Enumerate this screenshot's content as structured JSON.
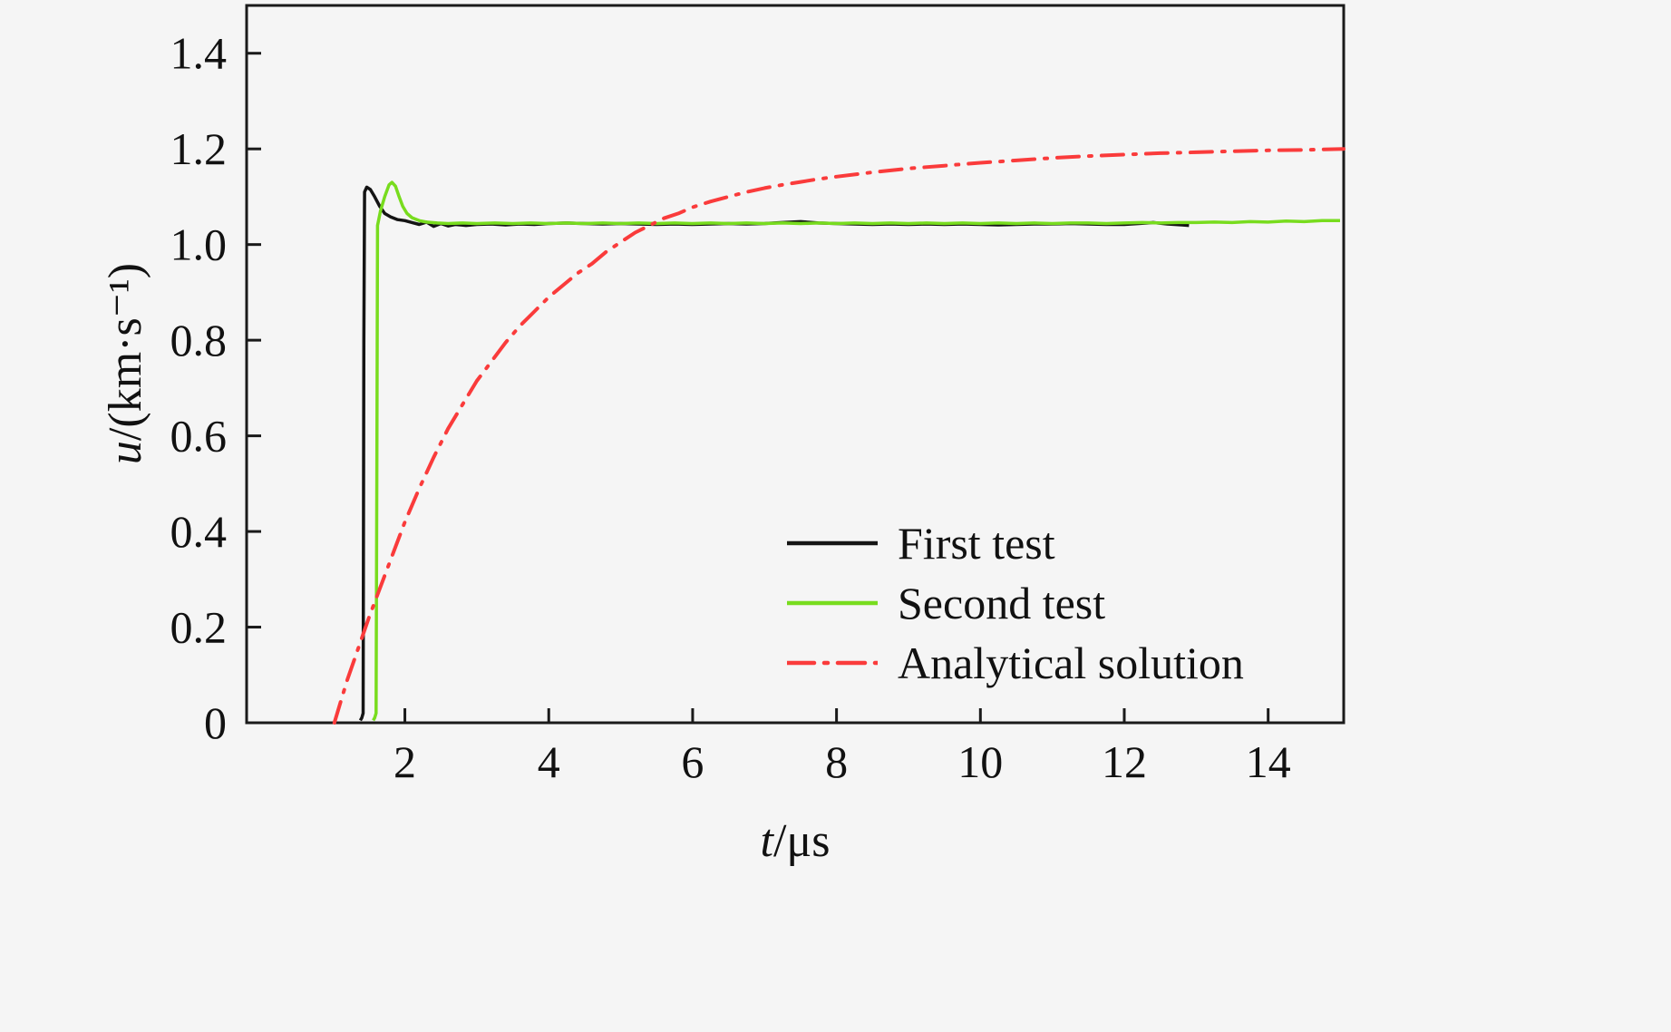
{
  "figure": {
    "background": "#f5f5f5",
    "frame_color": "#1a1a1a",
    "text_color": "#111111"
  },
  "chart_data": {
    "type": "line",
    "title": "",
    "xlabel_var": "t",
    "xlabel_rest": "/μs",
    "ylabel_var": "u",
    "ylabel_rest": "/(km·s⁻¹)",
    "xlim": [
      -0.2,
      15.05
    ],
    "ylim": [
      0,
      1.5
    ],
    "grid": false,
    "legend_position": "inside lower right",
    "xticks": [
      {
        "v": 2,
        "label": "2"
      },
      {
        "v": 4,
        "label": "4"
      },
      {
        "v": 6,
        "label": "6"
      },
      {
        "v": 8,
        "label": "8"
      },
      {
        "v": 10,
        "label": "10"
      },
      {
        "v": 12,
        "label": "12"
      },
      {
        "v": 14,
        "label": "14"
      }
    ],
    "yticks": [
      {
        "v": 0,
        "label": "0"
      },
      {
        "v": 0.2,
        "label": "0.2"
      },
      {
        "v": 0.4,
        "label": "0.4"
      },
      {
        "v": 0.6,
        "label": "0.6"
      },
      {
        "v": 0.8,
        "label": "0.8"
      },
      {
        "v": 1.0,
        "label": "1.0"
      },
      {
        "v": 1.2,
        "label": "1.2"
      },
      {
        "v": 1.4,
        "label": "1.4"
      }
    ],
    "series": [
      {
        "name": "first-test",
        "label": "First test",
        "color": "#141414",
        "style": "solid",
        "width": 3.5,
        "points": [
          [
            1.38,
            0.005
          ],
          [
            1.4,
            0.01
          ],
          [
            1.42,
            0.02
          ],
          [
            1.43,
            0.8
          ],
          [
            1.44,
            1.11
          ],
          [
            1.47,
            1.12
          ],
          [
            1.52,
            1.115
          ],
          [
            1.58,
            1.1
          ],
          [
            1.65,
            1.08
          ],
          [
            1.72,
            1.065
          ],
          [
            1.8,
            1.058
          ],
          [
            1.9,
            1.052
          ],
          [
            2.0,
            1.05
          ],
          [
            2.1,
            1.046
          ],
          [
            2.2,
            1.042
          ],
          [
            2.3,
            1.047
          ],
          [
            2.4,
            1.038
          ],
          [
            2.5,
            1.044
          ],
          [
            2.6,
            1.039
          ],
          [
            2.7,
            1.042
          ],
          [
            2.85,
            1.04
          ],
          [
            3.0,
            1.042
          ],
          [
            3.2,
            1.043
          ],
          [
            3.4,
            1.041
          ],
          [
            3.6,
            1.043
          ],
          [
            3.8,
            1.042
          ],
          [
            4.0,
            1.044
          ],
          [
            4.25,
            1.045
          ],
          [
            4.5,
            1.044
          ],
          [
            4.75,
            1.043
          ],
          [
            5.0,
            1.044
          ],
          [
            5.25,
            1.043
          ],
          [
            5.5,
            1.042
          ],
          [
            5.75,
            1.043
          ],
          [
            6.0,
            1.042
          ],
          [
            6.25,
            1.043
          ],
          [
            6.5,
            1.044
          ],
          [
            6.75,
            1.043
          ],
          [
            7.0,
            1.044
          ],
          [
            7.25,
            1.046
          ],
          [
            7.5,
            1.048
          ],
          [
            7.75,
            1.045
          ],
          [
            8.0,
            1.044
          ],
          [
            8.25,
            1.043
          ],
          [
            8.5,
            1.042
          ],
          [
            8.75,
            1.043
          ],
          [
            9.0,
            1.042
          ],
          [
            9.25,
            1.043
          ],
          [
            9.5,
            1.042
          ],
          [
            9.75,
            1.043
          ],
          [
            10.0,
            1.042
          ],
          [
            10.25,
            1.041
          ],
          [
            10.5,
            1.042
          ],
          [
            10.75,
            1.043
          ],
          [
            11.0,
            1.043
          ],
          [
            11.25,
            1.044
          ],
          [
            11.5,
            1.043
          ],
          [
            11.75,
            1.042
          ],
          [
            12.0,
            1.042
          ],
          [
            12.2,
            1.044
          ],
          [
            12.4,
            1.046
          ],
          [
            12.6,
            1.043
          ],
          [
            12.8,
            1.041
          ],
          [
            12.9,
            1.04
          ]
        ]
      },
      {
        "name": "second-test",
        "label": "Second test",
        "color": "#78dc1e",
        "style": "solid",
        "width": 3.5,
        "points": [
          [
            1.56,
            0.005
          ],
          [
            1.58,
            0.01
          ],
          [
            1.6,
            0.02
          ],
          [
            1.61,
            0.5
          ],
          [
            1.62,
            1.04
          ],
          [
            1.66,
            1.07
          ],
          [
            1.72,
            1.1
          ],
          [
            1.78,
            1.125
          ],
          [
            1.82,
            1.13
          ],
          [
            1.87,
            1.122
          ],
          [
            1.92,
            1.1
          ],
          [
            1.97,
            1.08
          ],
          [
            2.03,
            1.065
          ],
          [
            2.1,
            1.056
          ],
          [
            2.2,
            1.05
          ],
          [
            2.3,
            1.047
          ],
          [
            2.45,
            1.045
          ],
          [
            2.6,
            1.044
          ],
          [
            2.8,
            1.045
          ],
          [
            3.0,
            1.044
          ],
          [
            3.25,
            1.045
          ],
          [
            3.5,
            1.044
          ],
          [
            3.75,
            1.045
          ],
          [
            4.0,
            1.044
          ],
          [
            4.25,
            1.045
          ],
          [
            4.5,
            1.044
          ],
          [
            4.75,
            1.045
          ],
          [
            5.0,
            1.044
          ],
          [
            5.25,
            1.045
          ],
          [
            5.5,
            1.044
          ],
          [
            5.75,
            1.045
          ],
          [
            6.0,
            1.044
          ],
          [
            6.25,
            1.045
          ],
          [
            6.5,
            1.044
          ],
          [
            6.75,
            1.045
          ],
          [
            7.0,
            1.044
          ],
          [
            7.25,
            1.045
          ],
          [
            7.5,
            1.044
          ],
          [
            7.75,
            1.045
          ],
          [
            8.0,
            1.044
          ],
          [
            8.25,
            1.045
          ],
          [
            8.5,
            1.044
          ],
          [
            8.75,
            1.045
          ],
          [
            9.0,
            1.044
          ],
          [
            9.25,
            1.045
          ],
          [
            9.5,
            1.044
          ],
          [
            9.75,
            1.045
          ],
          [
            10.0,
            1.044
          ],
          [
            10.25,
            1.045
          ],
          [
            10.5,
            1.044
          ],
          [
            10.75,
            1.045
          ],
          [
            11.0,
            1.044
          ],
          [
            11.25,
            1.045
          ],
          [
            11.5,
            1.045
          ],
          [
            11.75,
            1.044
          ],
          [
            12.0,
            1.045
          ],
          [
            12.25,
            1.046
          ],
          [
            12.5,
            1.045
          ],
          [
            12.75,
            1.046
          ],
          [
            13.0,
            1.046
          ],
          [
            13.25,
            1.047
          ],
          [
            13.5,
            1.046
          ],
          [
            13.75,
            1.048
          ],
          [
            14.0,
            1.047
          ],
          [
            14.25,
            1.049
          ],
          [
            14.5,
            1.048
          ],
          [
            14.75,
            1.05
          ],
          [
            15.0,
            1.05
          ]
        ]
      },
      {
        "name": "analytical-solution",
        "label": "Analytical solution",
        "color": "#fa3b3b",
        "style": "dashdot",
        "width": 4,
        "points": [
          [
            1.02,
            0.0
          ],
          [
            1.1,
            0.04
          ],
          [
            1.2,
            0.09
          ],
          [
            1.35,
            0.155
          ],
          [
            1.5,
            0.22
          ],
          [
            1.65,
            0.28
          ],
          [
            1.8,
            0.34
          ],
          [
            2.0,
            0.42
          ],
          [
            2.2,
            0.49
          ],
          [
            2.4,
            0.555
          ],
          [
            2.6,
            0.615
          ],
          [
            2.8,
            0.665
          ],
          [
            3.0,
            0.715
          ],
          [
            3.2,
            0.755
          ],
          [
            3.4,
            0.795
          ],
          [
            3.6,
            0.83
          ],
          [
            3.8,
            0.86
          ],
          [
            4.0,
            0.89
          ],
          [
            4.2,
            0.915
          ],
          [
            4.4,
            0.94
          ],
          [
            4.6,
            0.96
          ],
          [
            4.8,
            0.985
          ],
          [
            5.0,
            1.005
          ],
          [
            5.2,
            1.025
          ],
          [
            5.4,
            1.04
          ],
          [
            5.6,
            1.055
          ],
          [
            5.8,
            1.065
          ],
          [
            6.0,
            1.078
          ],
          [
            6.25,
            1.09
          ],
          [
            6.5,
            1.1
          ],
          [
            6.75,
            1.11
          ],
          [
            7.0,
            1.118
          ],
          [
            7.25,
            1.125
          ],
          [
            7.5,
            1.131
          ],
          [
            7.75,
            1.137
          ],
          [
            8.0,
            1.142
          ],
          [
            8.5,
            1.151
          ],
          [
            9.0,
            1.159
          ],
          [
            9.5,
            1.165
          ],
          [
            10.0,
            1.171
          ],
          [
            10.5,
            1.176
          ],
          [
            11.0,
            1.181
          ],
          [
            11.5,
            1.185
          ],
          [
            12.0,
            1.188
          ],
          [
            12.5,
            1.191
          ],
          [
            13.0,
            1.193
          ],
          [
            13.5,
            1.195
          ],
          [
            14.0,
            1.197
          ],
          [
            14.5,
            1.198
          ],
          [
            15.05,
            1.2
          ]
        ]
      }
    ]
  }
}
